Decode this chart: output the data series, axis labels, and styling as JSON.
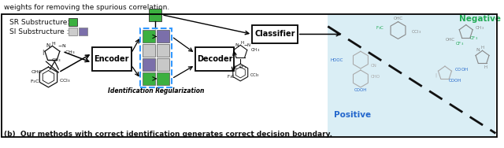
{
  "fig_width": 6.4,
  "fig_height": 1.88,
  "dpi": 100,
  "background_color": "#ffffff",
  "border_color": "#000000",
  "top_text": "weights for removing the spurious correlation.",
  "bottom_text": "(b)  Our methods with correct identification generates correct decision boundary.",
  "legend_sr_label": "SR Substructure:",
  "legend_si_label": "SI Substructure :",
  "sr_color": "#3cb040",
  "si_color1": "#cccccc",
  "si_color2": "#7b6faa",
  "encoder_label": "Encoder",
  "decoder_label": "Decoder",
  "classifier_label": "Classifier",
  "id_reg_label": "Identification Regularization",
  "positive_label": "Positive",
  "negative_label": "Negative",
  "positive_color": "#2266cc",
  "negative_color": "#22aa55",
  "right_bg_color": "#daeef5",
  "dashed_line_color": "#111111",
  "box_color": "#000000",
  "arrow_color": "#000000",
  "grid_green": "#3cb040",
  "grid_grey": "#c8c8c8",
  "grid_purple": "#7b6faa",
  "dashed_box_color": "#3399ff",
  "mol_color": "#111111",
  "mol_color_right_neg": "#888888",
  "mol_color_right_pos": "#aaaaaa"
}
